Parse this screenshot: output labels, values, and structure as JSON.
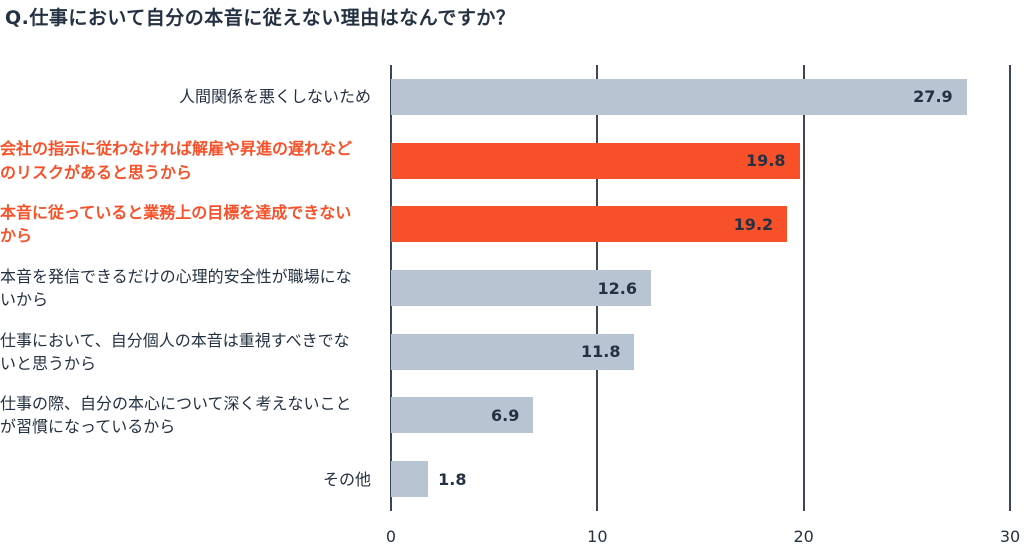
{
  "title": "Q.仕事において自分の本音に従えない理由はなんですか？",
  "colors": {
    "navy": "#243142",
    "bar_default": "#b9c4d3",
    "bar_highlight": "#f8512a",
    "label_default": "#243142",
    "label_highlight": "#f8512a",
    "value_text": "#243142",
    "gridline": "#3d4657"
  },
  "chart_data": {
    "type": "bar",
    "orientation": "horizontal",
    "title": "Q.仕事において自分の本音に従えない理由はなんですか？",
    "xlabel": "",
    "ylabel": "",
    "xlim": [
      0,
      30
    ],
    "x_ticks": [
      0,
      10,
      20,
      30
    ],
    "grid": "vertical-lines",
    "legend": "none",
    "categories": [
      "人間関係を悪くしないため",
      "会社の指示に従わなければ解雇や昇進の遅れなど\nのリスクがあると思うから",
      "本音に従っていると業務上の目標を達成できない\nから",
      "本音を発信できるだけの心理的安全性が職場にな\nいから",
      "仕事において、自分個人の本音は重視すべきでな\nいと思うから",
      "仕事の際、自分の本心について深く考えないこと\nが習慣になっているから",
      "その他"
    ],
    "values": [
      27.9,
      19.8,
      19.2,
      12.6,
      11.8,
      6.9,
      1.8
    ],
    "value_labels": [
      "27.9",
      "19.8",
      "19.2",
      "12.6",
      "11.8",
      "6.9",
      "1.8"
    ],
    "highlighted": [
      false,
      true,
      true,
      false,
      false,
      false,
      false
    ],
    "value_label_inside": [
      true,
      true,
      true,
      true,
      true,
      true,
      false
    ]
  }
}
